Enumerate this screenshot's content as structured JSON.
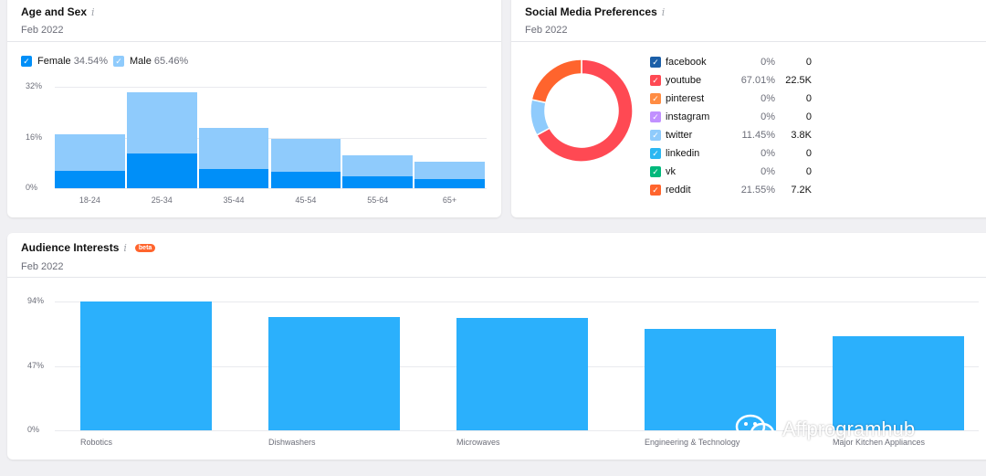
{
  "age_sex": {
    "title": "Age and Sex",
    "date": "Feb 2022",
    "legend": [
      {
        "label": "Female",
        "value": "34.54%",
        "color": "#008ff8"
      },
      {
        "label": "Male",
        "value": "65.46%",
        "color": "#8fcbfc"
      }
    ],
    "y_ticks": [
      "32%",
      "16%",
      "0%"
    ]
  },
  "social": {
    "title": "Social Media Preferences",
    "date": "Feb 2022",
    "rows": [
      {
        "name": "facebook",
        "pct": "0%",
        "count": "0",
        "color": "#1b5fa8"
      },
      {
        "name": "youtube",
        "pct": "67.01%",
        "count": "22.5K",
        "color": "#ff4953"
      },
      {
        "name": "pinterest",
        "pct": "0%",
        "count": "0",
        "color": "#ff8c43"
      },
      {
        "name": "instagram",
        "pct": "0%",
        "count": "0",
        "color": "#c190ff"
      },
      {
        "name": "twitter",
        "pct": "11.45%",
        "count": "3.8K",
        "color": "#8fcbfc"
      },
      {
        "name": "linkedin",
        "pct": "0%",
        "count": "0",
        "color": "#2bb7f2"
      },
      {
        "name": "vk",
        "pct": "0%",
        "count": "0",
        "color": "#00b87b"
      },
      {
        "name": "reddit",
        "pct": "21.55%",
        "count": "7.2K",
        "color": "#ff642d"
      }
    ]
  },
  "interests": {
    "title": "Audience Interests",
    "badge": "beta",
    "date": "Feb 2022",
    "y_ticks": [
      "94%",
      "47%",
      "0%"
    ]
  },
  "watermark": {
    "text": "Affprogramhub"
  },
  "chart_data": [
    {
      "type": "bar",
      "stacked": true,
      "categories": [
        "18-24",
        "25-34",
        "35-44",
        "45-54",
        "55-64",
        "65+"
      ],
      "series": [
        {
          "name": "Female",
          "values": [
            5.5,
            11,
            6,
            5.2,
            3.8,
            2.9
          ],
          "color": "#008ff8"
        },
        {
          "name": "Male",
          "values": [
            11.5,
            19.2,
            13,
            10.3,
            6.5,
            5.5
          ],
          "color": "#8fcbfc"
        }
      ],
      "ylim": [
        0,
        32
      ]
    },
    {
      "type": "pie",
      "donut": true,
      "labels": [
        "youtube",
        "twitter",
        "reddit"
      ],
      "values": [
        67.01,
        11.45,
        21.55
      ],
      "colors": [
        "#ff4953",
        "#8fcbfc",
        "#ff642d"
      ]
    },
    {
      "type": "bar",
      "categories": [
        "Robotics",
        "Dishwashers",
        "Microwaves",
        "Engineering & Technology",
        "Major Kitchen Appliances"
      ],
      "values": [
        94,
        83,
        82,
        74,
        69
      ],
      "color": "#2bb0fc",
      "ylim": [
        0,
        94
      ]
    }
  ]
}
